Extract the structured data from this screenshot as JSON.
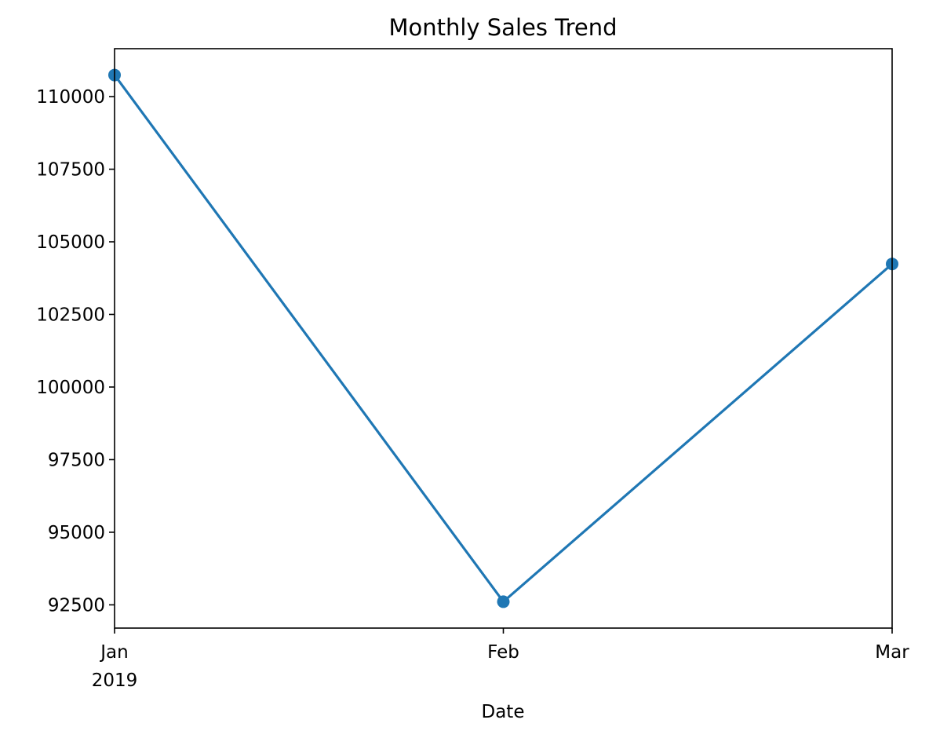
{
  "chart_data": {
    "type": "line",
    "title": "Monthly Sales Trend",
    "xlabel": "Date",
    "ylabel": "",
    "x": [
      "2019-01",
      "2019-02",
      "2019-03"
    ],
    "x_tick_labels": [
      "Jan",
      "Feb",
      "Mar"
    ],
    "x_tick_year_label": "2019",
    "series": [
      {
        "values": [
          110742,
          92608,
          104238
        ],
        "color": "#1f77b4",
        "marker": "circle"
      }
    ],
    "ylim": [
      91700,
      111650
    ],
    "y_ticks": [
      92500,
      95000,
      97500,
      100000,
      102500,
      105000,
      107500,
      110000
    ],
    "grid": false,
    "legend": "none"
  }
}
